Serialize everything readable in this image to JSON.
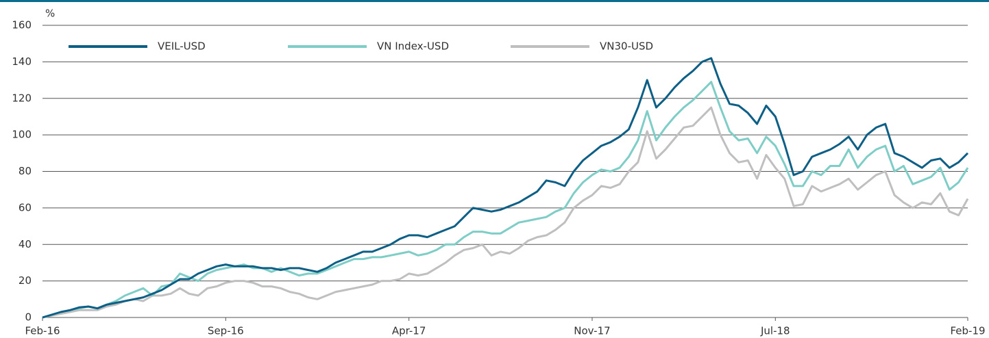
{
  "chart_data": {
    "type": "line",
    "y_label": "%",
    "categories": [
      "Feb-16",
      null,
      null,
      null,
      null,
      null,
      null,
      null,
      null,
      null,
      null,
      null,
      null,
      null,
      null,
      null,
      null,
      null,
      null,
      null,
      "Sep-16",
      null,
      null,
      null,
      null,
      null,
      null,
      null,
      null,
      null,
      null,
      null,
      null,
      null,
      null,
      null,
      null,
      null,
      null,
      null,
      "Apr-17",
      null,
      null,
      null,
      null,
      null,
      null,
      null,
      null,
      null,
      null,
      null,
      null,
      null,
      null,
      null,
      null,
      null,
      null,
      null,
      "Nov-17",
      null,
      null,
      null,
      null,
      null,
      null,
      null,
      null,
      null,
      null,
      null,
      null,
      null,
      null,
      null,
      null,
      null,
      null,
      null,
      "Jul-18",
      null,
      null,
      null,
      null,
      null,
      null,
      null,
      null,
      null,
      null,
      null,
      null,
      null,
      null,
      null,
      null,
      null,
      null,
      null,
      null,
      "Feb-19"
    ],
    "series": [
      {
        "name": "VEIL-USD",
        "color": "#0d5f86",
        "values": [
          0,
          1.5,
          3,
          4,
          5.5,
          6,
          5,
          7,
          8,
          9,
          10,
          11,
          13,
          15,
          18,
          21,
          21,
          24,
          26,
          28,
          29,
          28,
          28,
          28,
          27,
          27,
          26,
          27,
          27,
          26,
          25,
          27,
          30,
          32,
          34,
          36,
          36,
          38,
          40,
          43,
          45,
          45,
          44,
          46,
          48,
          50,
          55,
          60,
          59,
          58,
          59,
          61,
          63,
          66,
          69,
          75,
          74,
          72,
          80,
          86,
          90,
          94,
          96,
          99,
          103,
          115,
          130,
          115,
          120,
          126,
          131,
          135,
          140,
          142,
          128,
          117,
          116,
          112,
          106,
          116,
          110,
          95,
          78,
          80,
          88,
          90,
          92,
          95,
          99,
          92,
          100,
          104,
          106,
          90,
          88,
          85,
          82,
          86,
          87,
          82,
          85,
          90
        ]
      },
      {
        "name": "VN Index-USD",
        "color": "#7ecdc6",
        "values": [
          0,
          1.5,
          3,
          4,
          5,
          6,
          5,
          7,
          9,
          12,
          14,
          16,
          12,
          17,
          18,
          24,
          22,
          20,
          24,
          26,
          27,
          28,
          29,
          27,
          27,
          25,
          27,
          25,
          23,
          24,
          24,
          26,
          28,
          30,
          32,
          32,
          33,
          33,
          34,
          35,
          36,
          34,
          35,
          37,
          40,
          40,
          44,
          47,
          47,
          46,
          46,
          49,
          52,
          53,
          54,
          55,
          58,
          60,
          68,
          74,
          78,
          81,
          80,
          82,
          88,
          97,
          113,
          97,
          104,
          110,
          115,
          119,
          124,
          129,
          115,
          102,
          97,
          98,
          90,
          99,
          94,
          84,
          72,
          72,
          80,
          78,
          83,
          83,
          92,
          82,
          88,
          92,
          94,
          80,
          83,
          73,
          75,
          77,
          82,
          70,
          74,
          82
        ]
      },
      {
        "name": "VN30-USD",
        "color": "#bfbfbf",
        "values": [
          0,
          1,
          2,
          3,
          4,
          4,
          4,
          6,
          7,
          9,
          10,
          9,
          12,
          12,
          13,
          16,
          13,
          12,
          16,
          17,
          19,
          20,
          20,
          19,
          17,
          17,
          16,
          14,
          13,
          11,
          10,
          12,
          14,
          15,
          16,
          17,
          18,
          20,
          20,
          21,
          24,
          23,
          24,
          27,
          30,
          34,
          37,
          38,
          40,
          34,
          36,
          35,
          38,
          42,
          44,
          45,
          48,
          52,
          60,
          64,
          67,
          72,
          71,
          73,
          80,
          85,
          102,
          87,
          92,
          98,
          104,
          105,
          110,
          115,
          100,
          90,
          85,
          86,
          76,
          89,
          82,
          76,
          61,
          62,
          72,
          69,
          71,
          73,
          76,
          70,
          74,
          78,
          80,
          67,
          63,
          60,
          63,
          62,
          68,
          58,
          56,
          65
        ]
      }
    ],
    "ylim": [
      0,
      160
    ],
    "yticks": [
      0,
      20,
      40,
      60,
      80,
      100,
      120,
      140,
      160
    ],
    "grid": true
  }
}
